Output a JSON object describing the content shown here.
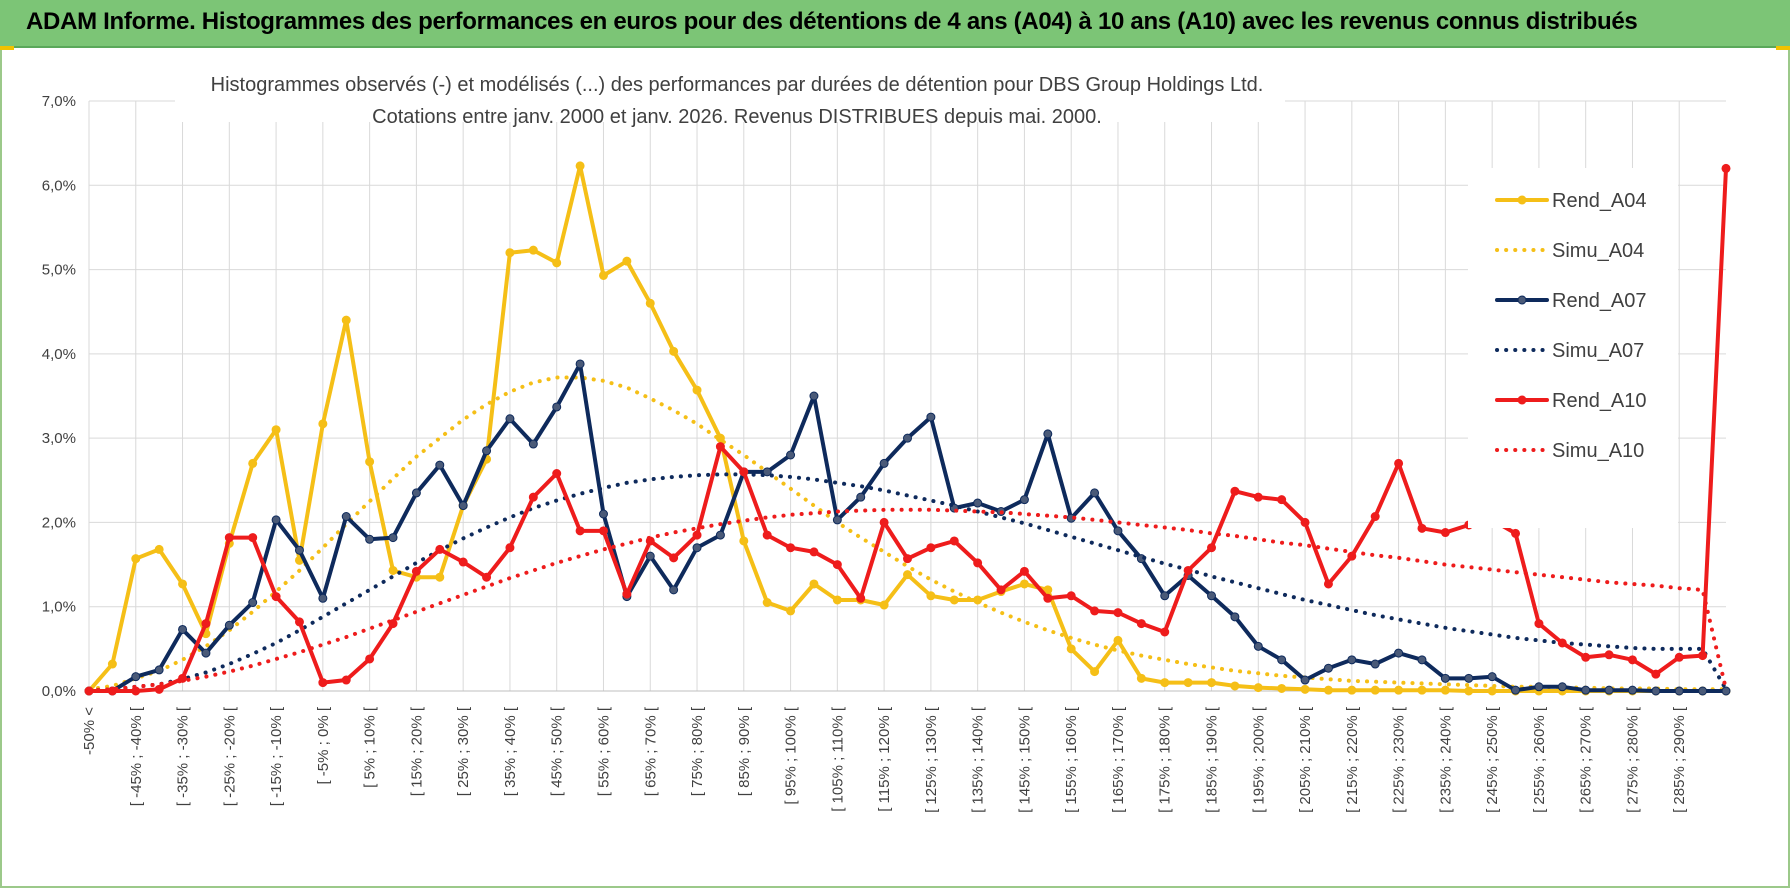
{
  "banner": {
    "title": "ADAM Informe. Histogrammes des performances en euros pour des détentions de 4 ans (A04) à 10 ans (A10) avec les revenus connus distribués"
  },
  "chart_data": {
    "type": "line",
    "title_line1": "Histogrammes observés (-) et modélisés (...) des performances par durées de détention pour DBS Group Holdings Ltd.",
    "title_line2": "Cotations entre janv. 2000 et janv. 2026. Revenus DISTRIBUES depuis mai. 2000.",
    "ylim": [
      0,
      7
    ],
    "yticks": [
      "0,0%",
      "1,0%",
      "2,0%",
      "3,0%",
      "4,0%",
      "5,0%",
      "6,0%",
      "7,0%"
    ],
    "grid": true,
    "legend_position": "right",
    "colors": {
      "yellow": "#f5bf17",
      "navy": "#0e2a5c",
      "red": "#ee1c1c",
      "grid": "#d9d9d9"
    },
    "categories": [
      "-50% <",
      "[ -50% ; -45% [",
      "[ -45% ; -40% [",
      "[ -40% ; -35% [",
      "[ -35% ; -30% [",
      "[ -30% ; -25% [",
      "[ -25% ; -20% [",
      "[ -20% ; -15% [",
      "[ -15% ; -10% [",
      "[ -10% ; -5% [",
      "[ -5% ; 0% [",
      "[ 0% ; 5% [",
      "[ 5% ; 10% [",
      "[ 10% ; 15% [",
      "[ 15% ; 20% [",
      "[ 20% ; 25% [",
      "[ 25% ; 30% [",
      "[ 30% ; 35% [",
      "[ 35% ; 40% [",
      "[ 40% ; 45% [",
      "[ 45% ; 50% [",
      "[ 50% ; 55% [",
      "[ 55% ; 60% [",
      "[ 60% ; 65% [",
      "[ 65% ; 70% [",
      "[ 70% ; 75% [",
      "[ 75% ; 80% [",
      "[ 80% ; 85% [",
      "[ 85% ; 90% [",
      "[ 90% ; 95% [",
      "[ 95% ; 100% [",
      "[ 100% ; 105% [",
      "[ 105% ; 110% [",
      "[ 110% ; 115% [",
      "[ 115% ; 120% [",
      "[ 120% ; 125% [",
      "[ 125% ; 130% [",
      "[ 130% ; 135% [",
      "[ 135% ; 140% [",
      "[ 140% ; 145% [",
      "[ 145% ; 150% [",
      "[ 150% ; 155% [",
      "[ 155% ; 160% [",
      "[ 160% ; 165% [",
      "[ 165% ; 170% [",
      "[ 170% ; 175% [",
      "[ 175% ; 180% [",
      "[ 180% ; 185% [",
      "[ 185% ; 190% [",
      "[ 190% ; 195% [",
      "[ 195% ; 200% [",
      "[ 200% ; 205% [",
      "[ 205% ; 210% [",
      "[ 210% ; 215% [",
      "[ 215% ; 220% [",
      "[ 220% ; 225% [",
      "[ 225% ; 230% [",
      "[ 230% ; 235% [",
      "[ 235% ; 240% [",
      "[ 240% ; 245% [",
      "[ 245% ; 250% [",
      "[ 250% ; 255% [",
      "[ 255% ; 260% [",
      "[ 260% ; 265% [",
      "[ 265% ; 270% [",
      "[ 270% ; 275% [",
      "[ 275% ; 280% [",
      "[ 280% ; 285% [",
      "[ 285% ; 290% [",
      "[ 290% ; 295% [",
      "[ 295% ; 300% ["
    ],
    "tick_labels_shown": [
      "-50% <",
      "[ -45% ; -40% [",
      "[ -35% ; -30% [",
      "[ -25% ; -20% [",
      "[ -15% ; -10% [",
      "[ -5% ; 0% [",
      "[ 5% ; 10% [",
      "[ 15% ; 20% [",
      "[ 25% ; 30% [",
      "[ 35% ; 40% [",
      "[ 45% ; 50% [",
      "[ 55% ; 60% [",
      "[ 65% ; 70% [",
      "[ 75% ; 80% [",
      "[ 85% ; 90% [",
      "[ 95% ; 100% [",
      "[ 105% ; 110% [",
      "[ 115% ; 120% [",
      "[ 125% ; 130% [",
      "[ 135% ; 140% [",
      "[ 145% ; 150% [",
      "[ 155% ; 160% [",
      "[ 165% ; 170% [",
      "[ 175% ; 180% [",
      "[ 185% ; 190% [",
      "[ 195% ; 200% [",
      "[ 205% ; 210% [",
      "[ 215% ; 220% [",
      "[ 225% ; 230% [",
      "[ 235% ; 240% [",
      "[ 245% ; 250% [",
      "[ 255% ; 260% [",
      "[ 265% ; 270% [",
      "[ 275% ; 280% [",
      "[ 285% ; 290% ["
    ],
    "series": [
      {
        "name": "Rend_A04",
        "style": "solid",
        "color": "#f5bf17",
        "values": [
          0,
          0.32,
          1.57,
          1.68,
          1.27,
          0.68,
          1.75,
          2.7,
          3.1,
          1.55,
          3.17,
          4.4,
          2.72,
          1.43,
          1.35,
          1.35,
          2.2,
          2.75,
          5.2,
          5.23,
          5.08,
          6.23,
          4.93,
          5.1,
          4.6,
          4.03,
          3.57,
          3.0,
          1.78,
          1.05,
          0.95,
          1.27,
          1.08,
          1.08,
          1.02,
          1.38,
          1.13,
          1.08,
          1.08,
          1.18,
          1.27,
          1.2,
          0.5,
          0.23,
          0.6,
          0.15,
          0.1,
          0.1,
          0.1,
          0.06,
          0.04,
          0.03,
          0.02,
          0.01,
          0.01,
          0.01,
          0.01,
          0.01,
          0.01,
          0,
          0,
          0,
          0,
          0,
          0,
          0,
          0,
          0,
          0,
          0,
          0
        ]
      },
      {
        "name": "Simu_A04",
        "style": "dotted",
        "color": "#f5bf17",
        "values": [
          0.02,
          0.06,
          0.15,
          0.24,
          0.37,
          0.53,
          0.72,
          0.94,
          1.18,
          1.43,
          1.7,
          1.98,
          2.25,
          2.52,
          2.78,
          3.0,
          3.22,
          3.4,
          3.55,
          3.66,
          3.72,
          3.72,
          3.68,
          3.6,
          3.47,
          3.33,
          3.17,
          2.98,
          2.8,
          2.6,
          2.4,
          2.2,
          2.0,
          1.82,
          1.65,
          1.48,
          1.32,
          1.18,
          1.05,
          0.93,
          0.82,
          0.72,
          0.63,
          0.55,
          0.48,
          0.42,
          0.37,
          0.32,
          0.28,
          0.24,
          0.21,
          0.18,
          0.16,
          0.14,
          0.12,
          0.11,
          0.1,
          0.09,
          0.08,
          0.07,
          0.06,
          0.05,
          0.05,
          0.04,
          0.04,
          0.03,
          0.03,
          0.03,
          0.02,
          0.02,
          0.02
        ]
      },
      {
        "name": "Rend_A07",
        "style": "solid",
        "color": "#0e2a5c",
        "values": [
          0,
          0,
          0.17,
          0.25,
          0.73,
          0.45,
          0.78,
          1.05,
          2.03,
          1.67,
          1.1,
          2.07,
          1.8,
          1.82,
          2.35,
          2.68,
          2.2,
          2.85,
          3.23,
          2.93,
          3.37,
          3.88,
          2.1,
          1.12,
          1.6,
          1.2,
          1.7,
          1.85,
          2.6,
          2.6,
          2.8,
          3.5,
          2.03,
          2.3,
          2.7,
          3.0,
          3.25,
          2.17,
          2.23,
          2.13,
          2.27,
          3.05,
          2.05,
          2.35,
          1.9,
          1.57,
          1.13,
          1.37,
          1.13,
          0.88,
          0.53,
          0.37,
          0.13,
          0.27,
          0.37,
          0.32,
          0.45,
          0.37,
          0.15,
          0.15,
          0.17,
          0.01,
          0.05,
          0.05,
          0.01,
          0.01,
          0.01,
          0,
          0,
          0,
          0
        ]
      },
      {
        "name": "Simu_A07",
        "style": "dotted",
        "color": "#0e2a5c",
        "values": [
          0.01,
          0.02,
          0.05,
          0.08,
          0.14,
          0.22,
          0.32,
          0.44,
          0.57,
          0.72,
          0.88,
          1.04,
          1.2,
          1.36,
          1.52,
          1.67,
          1.81,
          1.94,
          2.06,
          2.17,
          2.26,
          2.34,
          2.41,
          2.47,
          2.51,
          2.54,
          2.56,
          2.57,
          2.57,
          2.56,
          2.54,
          2.51,
          2.47,
          2.43,
          2.38,
          2.32,
          2.26,
          2.2,
          2.13,
          2.06,
          1.99,
          1.91,
          1.83,
          1.75,
          1.67,
          1.59,
          1.51,
          1.44,
          1.36,
          1.29,
          1.22,
          1.15,
          1.08,
          1.02,
          0.96,
          0.9,
          0.85,
          0.8,
          0.75,
          0.71,
          0.67,
          0.63,
          0.6,
          0.57,
          0.55,
          0.53,
          0.51,
          0.5,
          0.5,
          0.5,
          0.02
        ]
      },
      {
        "name": "Rend_A10",
        "style": "solid",
        "color": "#ee1c1c",
        "values": [
          0,
          0,
          0,
          0.02,
          0.15,
          0.8,
          1.82,
          1.82,
          1.12,
          0.82,
          0.1,
          0.13,
          0.38,
          0.8,
          1.42,
          1.68,
          1.53,
          1.35,
          1.7,
          2.3,
          2.58,
          1.9,
          1.9,
          1.15,
          1.78,
          1.58,
          1.85,
          2.9,
          2.6,
          1.85,
          1.7,
          1.65,
          1.5,
          1.1,
          2.0,
          1.57,
          1.7,
          1.78,
          1.52,
          1.2,
          1.42,
          1.1,
          1.13,
          0.95,
          0.93,
          0.8,
          0.7,
          1.43,
          1.7,
          2.37,
          2.3,
          2.27,
          2.0,
          1.27,
          1.6,
          2.07,
          2.7,
          1.93,
          1.88,
          1.97,
          2.03,
          1.87,
          0.8,
          0.57,
          0.4,
          0.43,
          0.37,
          0.2,
          0.4,
          0.42,
          6.2
        ]
      },
      {
        "name": "Simu_A10",
        "style": "dotted",
        "color": "#ee1c1c",
        "values": [
          0.01,
          0.02,
          0.05,
          0.08,
          0.12,
          0.17,
          0.23,
          0.3,
          0.38,
          0.46,
          0.55,
          0.64,
          0.74,
          0.84,
          0.94,
          1.04,
          1.14,
          1.24,
          1.34,
          1.43,
          1.52,
          1.6,
          1.68,
          1.75,
          1.82,
          1.88,
          1.93,
          1.98,
          2.02,
          2.06,
          2.09,
          2.11,
          2.13,
          2.14,
          2.15,
          2.15,
          2.15,
          2.14,
          2.13,
          2.12,
          2.1,
          2.08,
          2.06,
          2.03,
          2.0,
          1.97,
          1.94,
          1.91,
          1.87,
          1.84,
          1.8,
          1.76,
          1.73,
          1.69,
          1.65,
          1.61,
          1.58,
          1.54,
          1.5,
          1.47,
          1.44,
          1.41,
          1.38,
          1.35,
          1.32,
          1.29,
          1.27,
          1.25,
          1.22,
          1.2,
          0.02
        ]
      }
    ]
  }
}
